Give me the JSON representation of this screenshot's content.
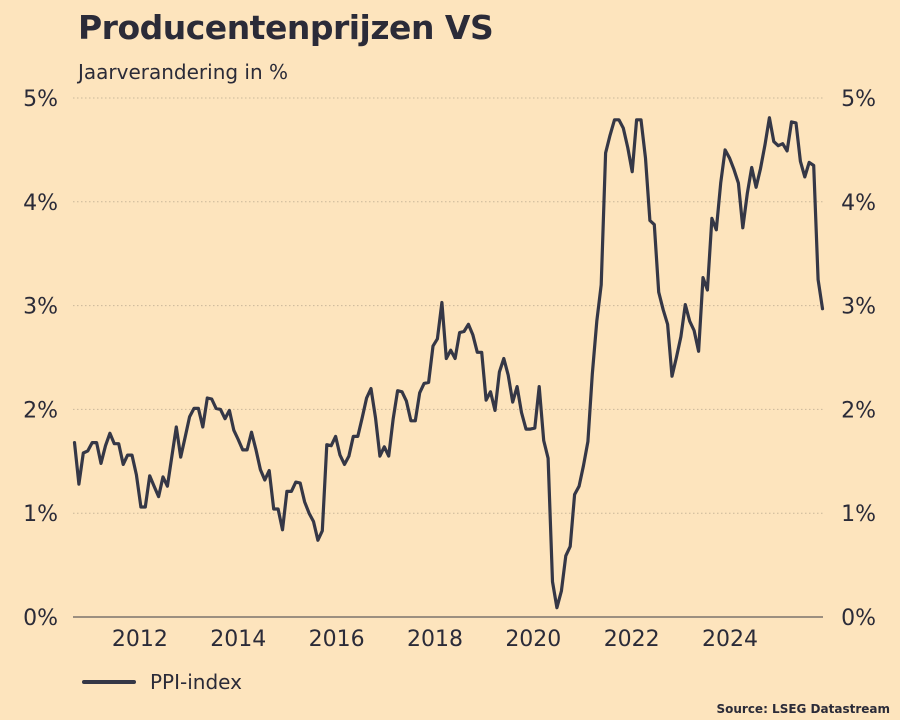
{
  "chart_data": {
    "type": "line",
    "title": "Producentenprijzen VS",
    "subtitle": "Jaarverandering in %",
    "xlabel": "",
    "ylabel": "",
    "xlim": [
      2011.25,
      2025.5
    ],
    "ylim": [
      0,
      5
    ],
    "x_ticks": [
      2012,
      2014,
      2016,
      2018,
      2020,
      2022,
      2024
    ],
    "y_ticks": [
      0,
      1,
      2,
      3,
      4,
      5
    ],
    "y_tick_labels": [
      "0%",
      "1%",
      "2%",
      "3%",
      "4%",
      "5%"
    ],
    "grid": true,
    "legend_position": "bottom-left",
    "line_color": "#353746",
    "series": [
      {
        "name": "PPI-index",
        "points": [
          [
            2011.28,
            1.68
          ],
          [
            2011.37,
            1.28
          ],
          [
            2011.46,
            1.58
          ],
          [
            2011.55,
            1.6
          ],
          [
            2011.64,
            1.68
          ],
          [
            2011.73,
            1.68
          ],
          [
            2011.82,
            1.48
          ],
          [
            2011.91,
            1.65
          ],
          [
            2012.0,
            1.77
          ],
          [
            2012.09,
            1.67
          ],
          [
            2012.18,
            1.67
          ],
          [
            2012.27,
            1.47
          ],
          [
            2012.36,
            1.56
          ],
          [
            2012.45,
            1.56
          ],
          [
            2012.54,
            1.37
          ],
          [
            2012.63,
            1.06
          ],
          [
            2012.72,
            1.06
          ],
          [
            2012.81,
            1.36
          ],
          [
            2012.9,
            1.26
          ],
          [
            2012.99,
            1.16
          ],
          [
            2013.08,
            1.35
          ],
          [
            2013.17,
            1.26
          ],
          [
            2013.26,
            1.55
          ],
          [
            2013.35,
            1.83
          ],
          [
            2013.44,
            1.54
          ],
          [
            2013.53,
            1.73
          ],
          [
            2013.62,
            1.93
          ],
          [
            2013.71,
            2.01
          ],
          [
            2013.8,
            2.01
          ],
          [
            2013.89,
            1.83
          ],
          [
            2013.98,
            2.11
          ],
          [
            2014.07,
            2.1
          ],
          [
            2014.16,
            2.01
          ],
          [
            2014.25,
            2.0
          ],
          [
            2014.34,
            1.91
          ],
          [
            2014.43,
            1.99
          ],
          [
            2014.52,
            1.8
          ],
          [
            2014.61,
            1.71
          ],
          [
            2014.7,
            1.61
          ],
          [
            2014.79,
            1.61
          ],
          [
            2014.88,
            1.78
          ],
          [
            2014.97,
            1.61
          ],
          [
            2015.06,
            1.42
          ],
          [
            2015.15,
            1.32
          ],
          [
            2015.24,
            1.41
          ],
          [
            2015.33,
            1.04
          ],
          [
            2015.42,
            1.04
          ],
          [
            2015.51,
            0.84
          ],
          [
            2015.6,
            1.21
          ],
          [
            2015.69,
            1.21
          ],
          [
            2015.78,
            1.3
          ],
          [
            2015.87,
            1.29
          ],
          [
            2015.96,
            1.11
          ],
          [
            2016.05,
            1.0
          ],
          [
            2016.14,
            0.92
          ],
          [
            2016.23,
            0.74
          ],
          [
            2016.32,
            0.83
          ],
          [
            2016.41,
            1.66
          ],
          [
            2016.5,
            1.65
          ],
          [
            2016.59,
            1.74
          ],
          [
            2016.68,
            1.56
          ],
          [
            2016.77,
            1.47
          ],
          [
            2016.86,
            1.55
          ],
          [
            2016.95,
            1.74
          ],
          [
            2017.04,
            1.74
          ],
          [
            2017.13,
            1.92
          ],
          [
            2017.22,
            2.11
          ],
          [
            2017.31,
            2.2
          ],
          [
            2017.4,
            1.92
          ],
          [
            2017.49,
            1.55
          ],
          [
            2017.58,
            1.64
          ],
          [
            2017.67,
            1.55
          ],
          [
            2017.76,
            1.91
          ],
          [
            2017.85,
            2.18
          ],
          [
            2017.94,
            2.17
          ],
          [
            2018.03,
            2.08
          ],
          [
            2018.12,
            1.89
          ],
          [
            2018.21,
            1.89
          ],
          [
            2018.3,
            2.16
          ],
          [
            2018.39,
            2.25
          ],
          [
            2018.48,
            2.26
          ],
          [
            2018.57,
            2.61
          ],
          [
            2018.66,
            2.68
          ],
          [
            2018.75,
            3.03
          ],
          [
            2018.84,
            2.49
          ],
          [
            2018.93,
            2.57
          ],
          [
            2019.02,
            2.49
          ],
          [
            2019.11,
            2.74
          ],
          [
            2019.2,
            2.75
          ],
          [
            2019.29,
            2.82
          ],
          [
            2019.38,
            2.72
          ],
          [
            2019.47,
            2.55
          ],
          [
            2019.56,
            2.55
          ],
          [
            2019.65,
            2.09
          ],
          [
            2019.74,
            2.17
          ],
          [
            2019.83,
            1.99
          ],
          [
            2019.92,
            2.36
          ],
          [
            2020.01,
            2.49
          ],
          [
            2020.1,
            2.33
          ],
          [
            2020.19,
            2.07
          ],
          [
            2020.28,
            2.22
          ],
          [
            2020.37,
            1.97
          ],
          [
            2020.46,
            1.81
          ],
          [
            2020.55,
            1.81
          ],
          [
            2020.64,
            1.82
          ],
          [
            2020.73,
            2.22
          ],
          [
            2020.82,
            1.7
          ],
          [
            2020.91,
            1.53
          ],
          [
            2021.0,
            0.34
          ],
          [
            2021.09,
            0.09
          ],
          [
            2021.18,
            0.25
          ],
          [
            2021.27,
            0.59
          ],
          [
            2021.36,
            0.68
          ],
          [
            2021.45,
            1.18
          ],
          [
            2021.54,
            1.26
          ],
          [
            2021.63,
            1.46
          ],
          [
            2021.72,
            1.69
          ],
          [
            2021.81,
            2.34
          ],
          [
            2021.9,
            2.85
          ],
          [
            2021.99,
            3.2
          ],
          [
            2022.08,
            4.47
          ],
          [
            2022.17,
            4.64
          ],
          [
            2022.26,
            4.79
          ],
          [
            2022.35,
            4.79
          ],
          [
            2022.44,
            4.71
          ],
          [
            2022.53,
            4.52
          ],
          [
            2022.62,
            4.29
          ],
          [
            2022.71,
            4.79
          ],
          [
            2022.8,
            4.79
          ],
          [
            2022.89,
            4.42
          ],
          [
            2022.98,
            3.82
          ],
          [
            2023.07,
            3.78
          ],
          [
            2023.16,
            3.13
          ],
          [
            2023.25,
            2.96
          ],
          [
            2023.34,
            2.82
          ],
          [
            2023.43,
            2.32
          ],
          [
            2023.52,
            2.5
          ],
          [
            2023.61,
            2.7
          ],
          [
            2023.7,
            3.01
          ],
          [
            2023.79,
            2.85
          ],
          [
            2023.88,
            2.76
          ],
          [
            2023.97,
            2.56
          ],
          [
            2024.06,
            3.27
          ],
          [
            2024.15,
            3.15
          ],
          [
            2024.24,
            3.84
          ],
          [
            2024.33,
            3.73
          ],
          [
            2024.42,
            4.18
          ],
          [
            2024.51,
            4.5
          ],
          [
            2024.6,
            4.42
          ],
          [
            2024.69,
            4.31
          ],
          [
            2024.78,
            4.18
          ],
          [
            2024.87,
            3.75
          ],
          [
            2024.96,
            4.08
          ],
          [
            2025.05,
            4.33
          ],
          [
            2025.14,
            4.14
          ],
          [
            2025.23,
            4.32
          ],
          [
            2025.32,
            4.55
          ],
          [
            2025.41,
            4.81
          ],
          [
            2025.5,
            4.58
          ],
          [
            2025.59,
            4.54
          ],
          [
            2025.68,
            4.56
          ],
          [
            2025.77,
            4.49
          ],
          [
            2025.86,
            4.77
          ],
          [
            2025.95,
            4.76
          ],
          [
            2026.04,
            4.39
          ],
          [
            2026.13,
            4.24
          ],
          [
            2026.22,
            4.38
          ],
          [
            2026.31,
            4.35
          ],
          [
            2026.4,
            3.25
          ],
          [
            2026.49,
            2.97
          ]
        ]
      }
    ]
  },
  "legend": {
    "label": "PPI-index"
  },
  "source": "Source: LSEG Datastream"
}
